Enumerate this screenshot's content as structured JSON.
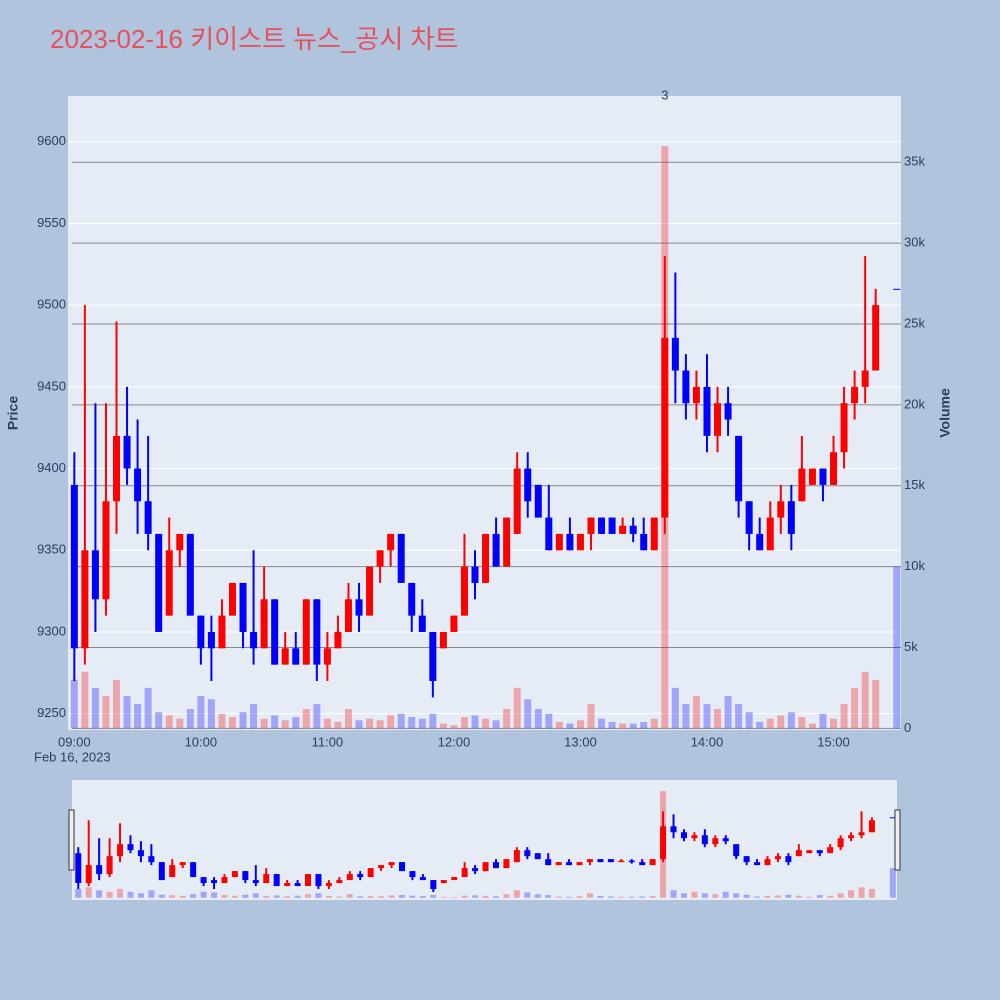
{
  "chart_data": {
    "type": "candlestick",
    "title": "2023-02-16 키이스트 뉴스_공시 차트",
    "y_label": "Price",
    "y2_label": "Volume",
    "xaxis_date": "Feb 16, 2023",
    "annotation": {
      "text": "3",
      "x": "2023-02-16 13:40"
    },
    "increasing_color": "#ff0000",
    "decreasing_color": "#0000ff",
    "x": [
      "2023-02-16 09:00",
      "2023-02-16 09:05",
      "2023-02-16 09:10",
      "2023-02-16 09:15",
      "2023-02-16 09:20",
      "2023-02-16 09:25",
      "2023-02-16 09:30",
      "2023-02-16 09:35",
      "2023-02-16 09:40",
      "2023-02-16 09:45",
      "2023-02-16 09:50",
      "2023-02-16 09:55",
      "2023-02-16 10:00",
      "2023-02-16 10:05",
      "2023-02-16 10:10",
      "2023-02-16 10:15",
      "2023-02-16 10:20",
      "2023-02-16 10:25",
      "2023-02-16 10:30",
      "2023-02-16 10:35",
      "2023-02-16 10:40",
      "2023-02-16 10:45",
      "2023-02-16 10:50",
      "2023-02-16 10:55",
      "2023-02-16 11:00",
      "2023-02-16 11:05",
      "2023-02-16 11:10",
      "2023-02-16 11:15",
      "2023-02-16 11:20",
      "2023-02-16 11:25",
      "2023-02-16 11:30",
      "2023-02-16 11:35",
      "2023-02-16 11:40",
      "2023-02-16 11:45",
      "2023-02-16 11:50",
      "2023-02-16 11:55",
      "2023-02-16 12:00",
      "2023-02-16 12:05",
      "2023-02-16 12:10",
      "2023-02-16 12:15",
      "2023-02-16 12:20",
      "2023-02-16 12:25",
      "2023-02-16 12:30",
      "2023-02-16 12:35",
      "2023-02-16 12:40",
      "2023-02-16 12:45",
      "2023-02-16 12:50",
      "2023-02-16 12:55",
      "2023-02-16 13:00",
      "2023-02-16 13:05",
      "2023-02-16 13:10",
      "2023-02-16 13:15",
      "2023-02-16 13:20",
      "2023-02-16 13:25",
      "2023-02-16 13:30",
      "2023-02-16 13:35",
      "2023-02-16 13:40",
      "2023-02-16 13:45",
      "2023-02-16 13:50",
      "2023-02-16 13:55",
      "2023-02-16 14:00",
      "2023-02-16 14:05",
      "2023-02-16 14:10",
      "2023-02-16 14:15",
      "2023-02-16 14:20",
      "2023-02-16 14:25",
      "2023-02-16 14:30",
      "2023-02-16 14:35",
      "2023-02-16 14:40",
      "2023-02-16 14:45",
      "2023-02-16 14:50",
      "2023-02-16 14:55",
      "2023-02-16 15:00",
      "2023-02-16 15:05",
      "2023-02-16 15:10",
      "2023-02-16 15:15",
      "2023-02-16 15:20",
      "2023-02-16 15:30"
    ],
    "open": [
      9390,
      9290,
      9350,
      9320,
      9380,
      9420,
      9400,
      9380,
      9360,
      9310,
      9350,
      9360,
      9310,
      9300,
      9290,
      9310,
      9330,
      9300,
      9290,
      9320,
      9280,
      9290,
      9280,
      9320,
      9280,
      9290,
      9300,
      9320,
      9310,
      9340,
      9350,
      9360,
      9330,
      9310,
      9300,
      9290,
      9300,
      9310,
      9340,
      9330,
      9360,
      9340,
      9360,
      9400,
      9390,
      9370,
      9350,
      9360,
      9350,
      9360,
      9370,
      9370,
      9360,
      9365,
      9360,
      9350,
      9370,
      9480,
      9460,
      9440,
      9450,
      9420,
      9440,
      9420,
      9380,
      9360,
      9350,
      9370,
      9380,
      9380,
      9390,
      9400,
      9390,
      9410,
      9440,
      9450,
      9460,
      9510
    ],
    "high": [
      9410,
      9500,
      9440,
      9440,
      9490,
      9450,
      9430,
      9420,
      9360,
      9370,
      9360,
      9360,
      9310,
      9310,
      9320,
      9330,
      9330,
      9350,
      9340,
      9320,
      9300,
      9300,
      9320,
      9320,
      9300,
      9310,
      9330,
      9330,
      9340,
      9350,
      9360,
      9360,
      9330,
      9320,
      9300,
      9300,
      9310,
      9360,
      9350,
      9360,
      9370,
      9370,
      9410,
      9410,
      9390,
      9390,
      9360,
      9370,
      9360,
      9370,
      9370,
      9370,
      9370,
      9370,
      9370,
      9370,
      9530,
      9520,
      9470,
      9460,
      9470,
      9450,
      9450,
      9420,
      9380,
      9370,
      9380,
      9390,
      9390,
      9420,
      9400,
      9400,
      9420,
      9450,
      9460,
      9530,
      9510,
      9510
    ],
    "low": [
      9270,
      9280,
      9300,
      9310,
      9360,
      9390,
      9360,
      9350,
      9300,
      9310,
      9340,
      9310,
      9280,
      9270,
      9290,
      9310,
      9290,
      9280,
      9290,
      9280,
      9280,
      9280,
      9280,
      9270,
      9270,
      9290,
      9300,
      9300,
      9310,
      9330,
      9340,
      9330,
      9300,
      9300,
      9260,
      9290,
      9300,
      9310,
      9320,
      9330,
      9340,
      9340,
      9360,
      9370,
      9370,
      9350,
      9350,
      9350,
      9350,
      9350,
      9360,
      9360,
      9360,
      9355,
      9350,
      9350,
      9360,
      9440,
      9430,
      9430,
      9410,
      9410,
      9420,
      9370,
      9350,
      9350,
      9350,
      9360,
      9350,
      9380,
      9390,
      9380,
      9390,
      9400,
      9430,
      9440,
      9460,
      9510
    ],
    "close": [
      9290,
      9350,
      9320,
      9380,
      9420,
      9400,
      9380,
      9360,
      9300,
      9350,
      9360,
      9310,
      9290,
      9290,
      9310,
      9330,
      9300,
      9290,
      9320,
      9280,
      9290,
      9280,
      9320,
      9280,
      9290,
      9300,
      9320,
      9310,
      9340,
      9350,
      9360,
      9330,
      9310,
      9300,
      9270,
      9300,
      9310,
      9340,
      9330,
      9360,
      9340,
      9370,
      9400,
      9380,
      9370,
      9350,
      9360,
      9350,
      9360,
      9370,
      9360,
      9360,
      9365,
      9360,
      9350,
      9370,
      9480,
      9460,
      9440,
      9450,
      9420,
      9440,
      9430,
      9380,
      9360,
      9350,
      9370,
      9380,
      9360,
      9400,
      9400,
      9390,
      9410,
      9440,
      9450,
      9460,
      9500,
      9510
    ],
    "volume": [
      3000,
      3500,
      2500,
      2000,
      3000,
      2000,
      1500,
      2500,
      1000,
      800,
      600,
      1200,
      2000,
      1800,
      900,
      700,
      1000,
      1500,
      600,
      800,
      500,
      700,
      1200,
      1500,
      600,
      400,
      1200,
      500,
      600,
      500,
      800,
      900,
      700,
      600,
      900,
      300,
      200,
      700,
      800,
      600,
      500,
      1200,
      2500,
      1800,
      1200,
      900,
      400,
      300,
      500,
      1500,
      600,
      400,
      300,
      300,
      400,
      600,
      36000,
      2500,
      1500,
      2000,
      1500,
      1200,
      2000,
      1500,
      1000,
      400,
      600,
      800,
      1000,
      700,
      300,
      900,
      600,
      1500,
      2500,
      3500,
      3000,
      10000
    ],
    "xlim": [
      "2023-02-16 08:57",
      "2023-02-16 15:32"
    ],
    "xticks": [
      {
        "value": "2023-02-16 09:00",
        "label": "09:00"
      },
      {
        "value": "2023-02-16 10:00",
        "label": "10:00"
      },
      {
        "value": "2023-02-16 11:00",
        "label": "11:00"
      },
      {
        "value": "2023-02-16 12:00",
        "label": "12:00"
      },
      {
        "value": "2023-02-16 13:00",
        "label": "13:00"
      },
      {
        "value": "2023-02-16 14:00",
        "label": "14:00"
      },
      {
        "value": "2023-02-16 15:00",
        "label": "15:00"
      }
    ],
    "ylim": [
      9240,
      9628
    ],
    "yticks": [
      9250,
      9300,
      9350,
      9400,
      9450,
      9500,
      9550,
      9600
    ],
    "y2lim": [
      -100,
      39100
    ],
    "y2ticks": [
      0,
      {
        "value": 5000,
        "label": "5k"
      },
      {
        "value": 10000,
        "label": "10k"
      },
      {
        "value": 15000,
        "label": "15k"
      },
      {
        "value": 20000,
        "label": "20k"
      },
      {
        "value": 25000,
        "label": "25k"
      },
      {
        "value": 30000,
        "label": "30k"
      },
      {
        "value": 35000,
        "label": "35k"
      }
    ],
    "grid": true
  }
}
